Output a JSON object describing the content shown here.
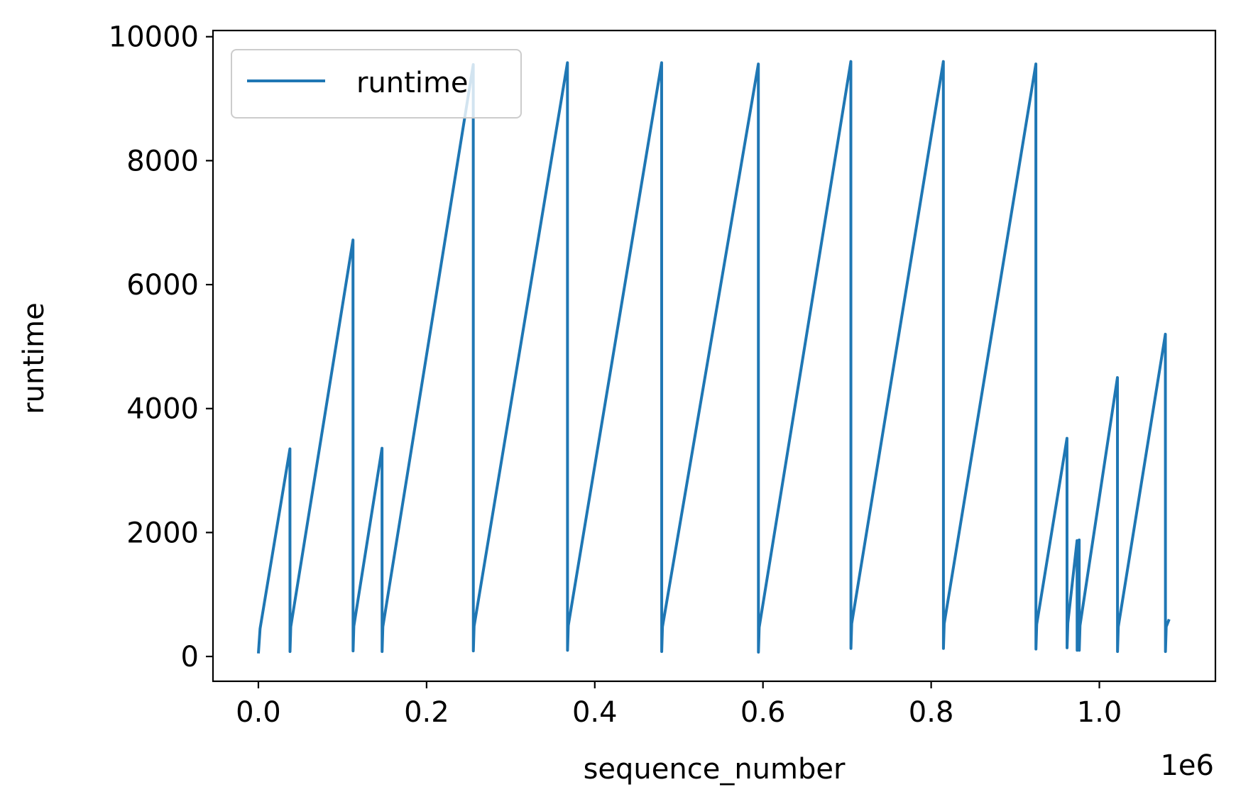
{
  "chart_data": {
    "type": "line",
    "title": "",
    "xlabel": "sequence_number",
    "ylabel": "runtime",
    "x_offset_label": "1e6",
    "xlim": [
      -0.054,
      1.138
    ],
    "ylim": [
      -400,
      10100
    ],
    "x_ticks": [
      0.0,
      0.2,
      0.4,
      0.6,
      0.8,
      1.0
    ],
    "x_tick_labels": [
      "0.0",
      "0.2",
      "0.4",
      "0.6",
      "0.8",
      "1.0"
    ],
    "y_ticks": [
      0,
      2000,
      4000,
      6000,
      8000,
      10000
    ],
    "y_tick_labels": [
      "0",
      "2000",
      "4000",
      "6000",
      "8000",
      "10000"
    ],
    "grid": false,
    "legend_position": "upper-left",
    "series": [
      {
        "name": "runtime",
        "color": "#1f77b4",
        "x": [
          0.0,
          0.002,
          0.0375,
          0.0376,
          0.0385,
          0.1125,
          0.1126,
          0.1135,
          0.147,
          0.1471,
          0.148,
          0.2555,
          0.2556,
          0.2565,
          0.3675,
          0.3676,
          0.3685,
          0.4795,
          0.4796,
          0.4805,
          0.5945,
          0.5946,
          0.5955,
          0.7045,
          0.7046,
          0.7055,
          0.8145,
          0.8146,
          0.8155,
          0.9245,
          0.9246,
          0.9255,
          0.9615,
          0.9616,
          0.9625,
          0.9735,
          0.9736,
          0.9745,
          0.976,
          0.9761,
          0.977,
          1.0215,
          1.0216,
          1.0225,
          1.0785,
          1.0786,
          1.0795,
          1.083
        ],
        "y": [
          50,
          450,
          3350,
          80,
          480,
          6720,
          90,
          490,
          3360,
          80,
          480,
          9550,
          90,
          490,
          9580,
          100,
          500,
          9580,
          80,
          480,
          9560,
          70,
          470,
          9600,
          130,
          530,
          9600,
          130,
          530,
          9560,
          120,
          520,
          3520,
          140,
          540,
          1870,
          100,
          500,
          1880,
          100,
          500,
          4500,
          80,
          480,
          5200,
          80,
          480,
          600
        ]
      }
    ]
  }
}
